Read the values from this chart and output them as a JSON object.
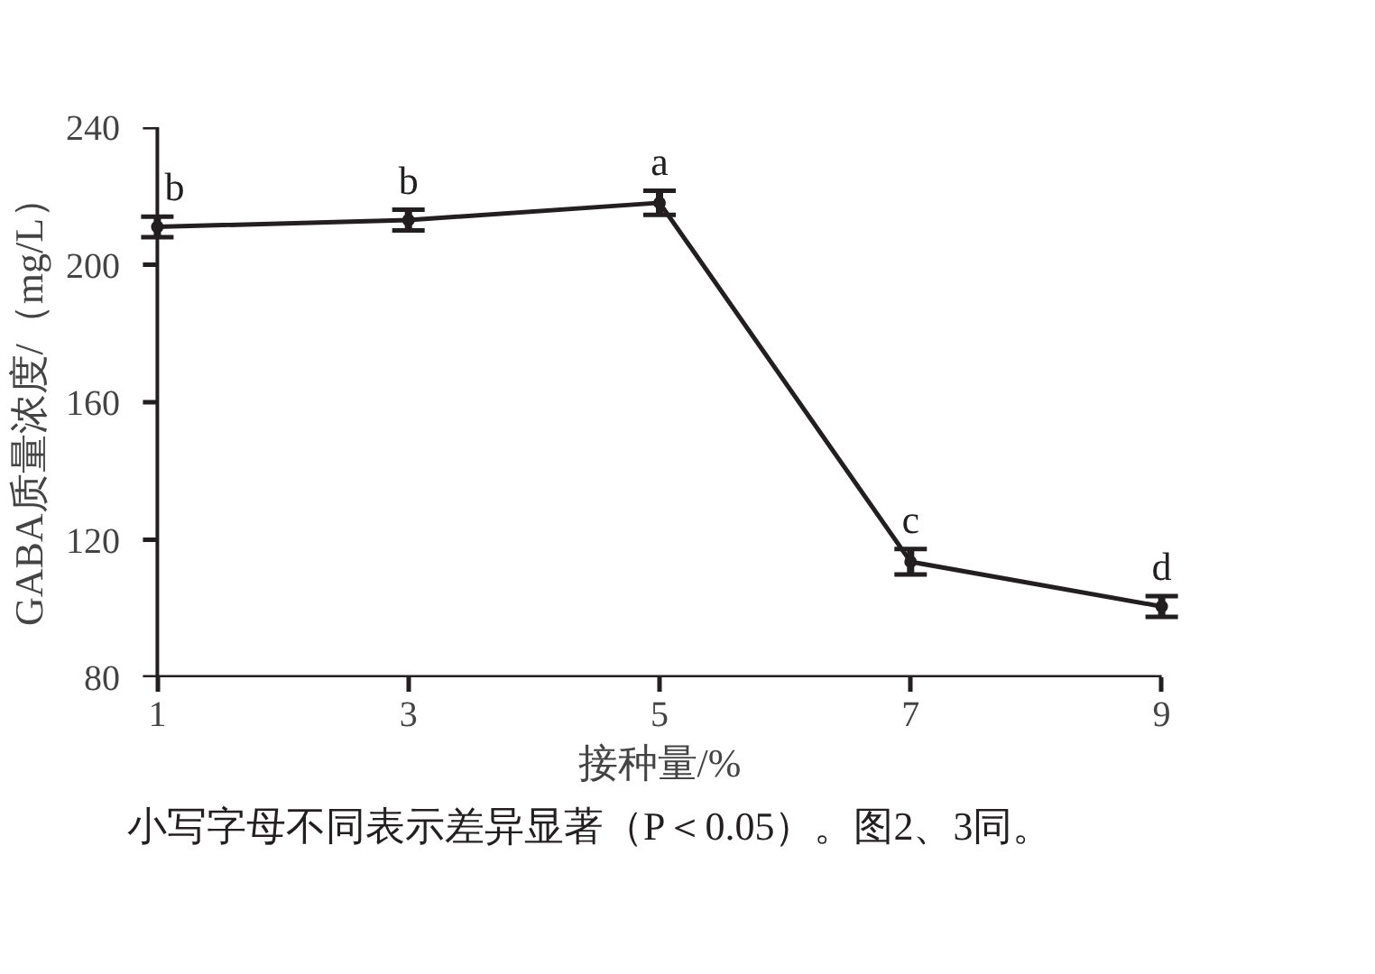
{
  "chart_data": {
    "type": "line",
    "xlabel": "接种量/%",
    "ylabel": "GABA质量浓度/（mg/L）",
    "x": [
      1,
      3,
      5,
      7,
      9
    ],
    "series": [
      {
        "color": "#231f20",
        "values": [
          211,
          213,
          218,
          113.6,
          100.6
        ],
        "errors": [
          3,
          3,
          3.5,
          3.7,
          3
        ]
      }
    ],
    "xlim": [
      1,
      9
    ],
    "xticks": [
      1,
      3,
      5,
      7,
      9
    ],
    "ylim": [
      80,
      240
    ],
    "yticks": [
      80,
      120,
      160,
      200,
      240
    ],
    "grid": false,
    "marker": "circle",
    "line_style": "solid",
    "annotations": [
      {
        "text": "b",
        "x": 1,
        "y": 211
      },
      {
        "text": "b",
        "x": 3,
        "y": 213
      },
      {
        "text": "a",
        "x": 5,
        "y": 218
      },
      {
        "text": "c",
        "x": 7,
        "y": 113.6
      },
      {
        "text": "d",
        "x": 9,
        "y": 100.6
      },
      "小写字母不同表示差异显著（P＜0.05）。图2、3同。"
    ]
  }
}
